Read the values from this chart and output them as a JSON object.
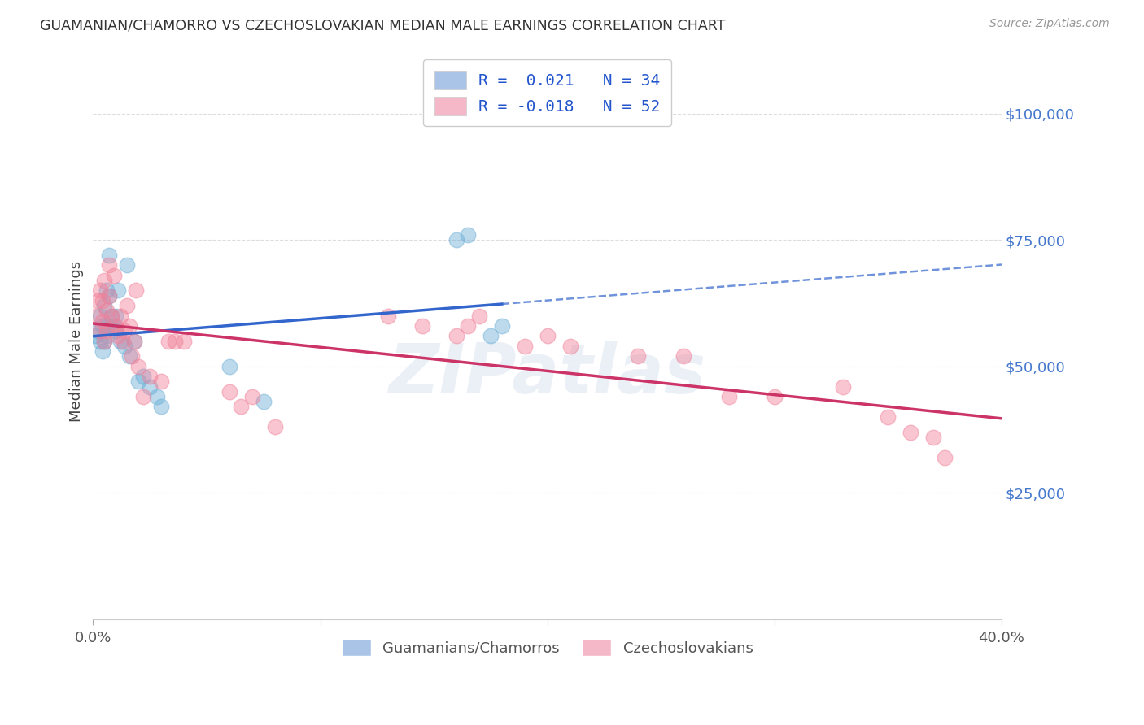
{
  "title": "GUAMANIAN/CHAMORRO VS CZECHOSLOVAKIAN MEDIAN MALE EARNINGS CORRELATION CHART",
  "source": "Source: ZipAtlas.com",
  "ylabel": "Median Male Earnings",
  "y_tick_values": [
    25000,
    50000,
    75000,
    100000
  ],
  "legend_label_1": "Guamanians/Chamorros",
  "legend_label_2": "Czechoslovakians",
  "blue_color": "#6baed6",
  "pink_color": "#f08098",
  "blue_line_color": "#3366cc",
  "pink_line_color": "#cc3366",
  "xlim": [
    0.0,
    0.4
  ],
  "ylim": [
    0,
    110000
  ],
  "watermark": "ZIPatlas",
  "background_color": "#ffffff",
  "grid_color": "#dddddd",
  "blue_x": [
    0.001,
    0.002,
    0.003,
    0.003,
    0.004,
    0.004,
    0.005,
    0.005,
    0.006,
    0.006,
    0.006,
    0.007,
    0.007,
    0.008,
    0.009,
    0.01,
    0.01,
    0.011,
    0.012,
    0.014,
    0.015,
    0.016,
    0.018,
    0.02,
    0.022,
    0.025,
    0.028,
    0.03,
    0.06,
    0.075,
    0.16,
    0.165,
    0.175,
    0.18
  ],
  "blue_y": [
    56000,
    57000,
    60000,
    55000,
    58000,
    53000,
    62000,
    55000,
    58000,
    56000,
    65000,
    72000,
    64000,
    60000,
    58000,
    57000,
    60000,
    65000,
    55000,
    54000,
    70000,
    52000,
    55000,
    47000,
    48000,
    46000,
    44000,
    42000,
    50000,
    43000,
    75000,
    76000,
    56000,
    58000
  ],
  "pink_x": [
    0.001,
    0.002,
    0.003,
    0.003,
    0.004,
    0.004,
    0.005,
    0.005,
    0.006,
    0.006,
    0.007,
    0.007,
    0.008,
    0.009,
    0.01,
    0.011,
    0.012,
    0.013,
    0.014,
    0.015,
    0.016,
    0.017,
    0.018,
    0.019,
    0.02,
    0.022,
    0.025,
    0.03,
    0.033,
    0.036,
    0.04,
    0.06,
    0.065,
    0.07,
    0.08,
    0.13,
    0.145,
    0.16,
    0.165,
    0.17,
    0.19,
    0.2,
    0.21,
    0.24,
    0.26,
    0.28,
    0.3,
    0.33,
    0.35,
    0.36,
    0.37,
    0.375
  ],
  "pink_y": [
    60000,
    63000,
    65000,
    57000,
    63000,
    59000,
    67000,
    55000,
    61000,
    57000,
    70000,
    64000,
    60000,
    68000,
    58000,
    56000,
    60000,
    55000,
    57000,
    62000,
    58000,
    52000,
    55000,
    65000,
    50000,
    44000,
    48000,
    47000,
    55000,
    55000,
    55000,
    45000,
    42000,
    44000,
    38000,
    60000,
    58000,
    56000,
    58000,
    60000,
    54000,
    56000,
    54000,
    52000,
    52000,
    44000,
    44000,
    46000,
    40000,
    37000,
    36000,
    32000
  ]
}
